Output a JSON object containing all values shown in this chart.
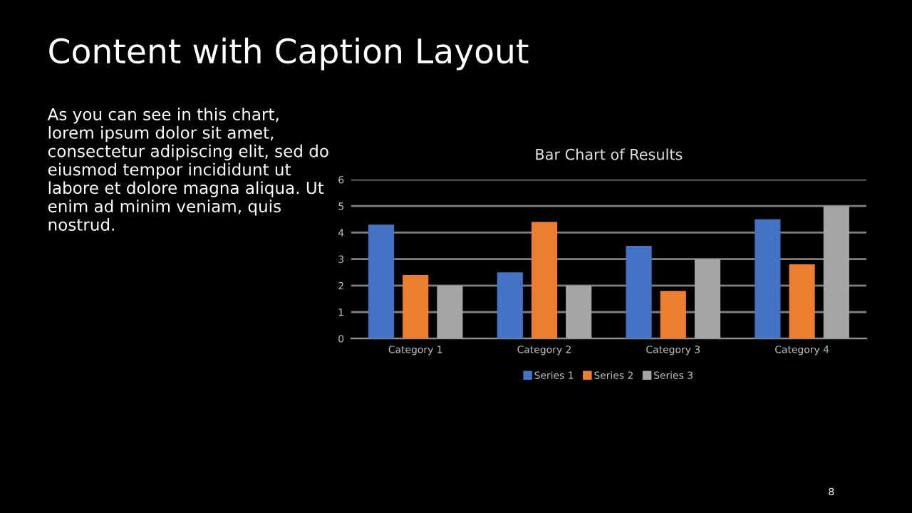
{
  "chart_data": {
    "type": "bar",
    "title": "Bar Chart of Results",
    "categories": [
      "Category 1",
      "Category 2",
      "Category 3",
      "Category 4"
    ],
    "series": [
      {
        "name": "Series 1",
        "color": "#4472c4",
        "values": [
          4.3,
          2.5,
          3.5,
          4.5
        ]
      },
      {
        "name": "Series 2",
        "color": "#ed7d31",
        "values": [
          2.4,
          4.4,
          1.8,
          2.8
        ]
      },
      {
        "name": "Series 3",
        "color": "#a5a5a5",
        "values": [
          2,
          2,
          3,
          5
        ]
      }
    ],
    "ylim": [
      0,
      6
    ],
    "yticks": [
      0,
      1,
      2,
      3,
      4,
      5,
      6
    ],
    "grid": "y",
    "legend": "bottom",
    "annotations": [
      "Content with Caption Layout",
      "As you can see in this chart,\nlorem ipsum dolor sit amet,\nconsectetur adipiscing elit, sed do\neiusmod tempor incididunt ut\nlabore et dolore magna aliqua. Ut\nenim ad minim veniam, quis\nnostrud.",
      "8"
    ]
  }
}
